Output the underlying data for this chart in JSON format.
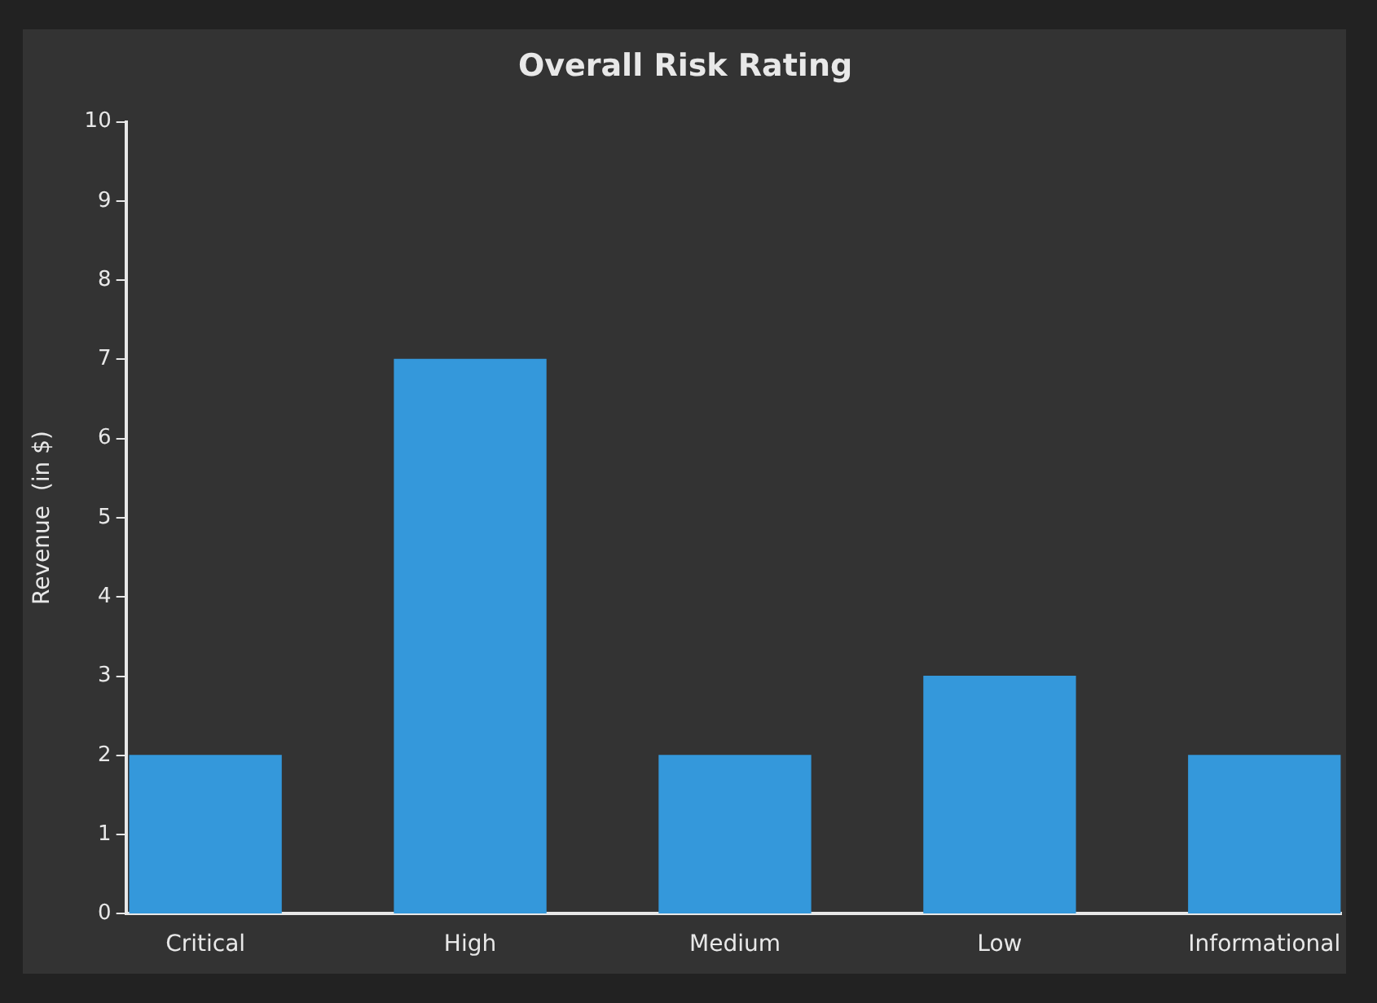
{
  "chart_data": {
    "type": "bar",
    "title": "Overall Risk Rating",
    "ylabel": "Revenue  (in $)",
    "categories": [
      "Critical",
      "High",
      "Medium",
      "Low",
      "Informational"
    ],
    "values": [
      2,
      7,
      2,
      3,
      2
    ],
    "color": "#3498db",
    "ylim": [
      0,
      10
    ],
    "yticks": [
      0,
      1,
      2,
      3,
      4,
      5,
      6,
      7,
      8,
      9,
      10
    ],
    "grid": false,
    "legend": false
  }
}
